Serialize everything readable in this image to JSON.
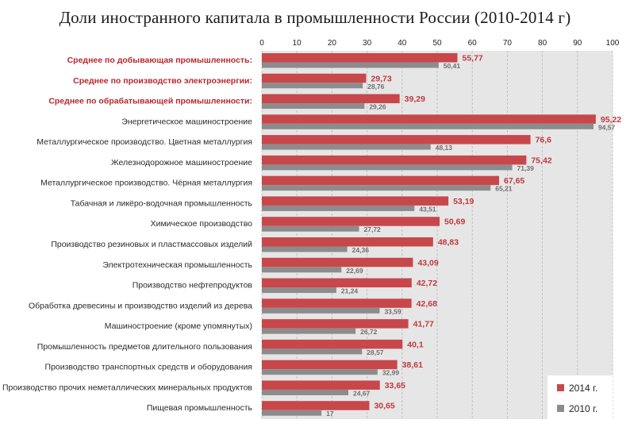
{
  "title": "Доли иностранного капитала в промышленности России (2010-2014 г)",
  "colors": {
    "series_2014": "#c8474b",
    "series_2010": "#8c8c8c",
    "plot_bg": "#e6e6e6",
    "highlight_label": "#b8282d"
  },
  "chart_data": {
    "type": "bar",
    "orientation": "horizontal",
    "title": "Доли иностранного капитала в промышленности России (2010-2014 г)",
    "xlim": [
      0,
      100
    ],
    "xticks": [
      0,
      10,
      20,
      30,
      40,
      50,
      60,
      70,
      80,
      90,
      100
    ],
    "x_axis_position": "top",
    "grid": "vertical dashed",
    "legend_position": "bottom-right",
    "categories": [
      "Среднее по добывающая промышленность:",
      "Среднее по производство электроэнергии:",
      "Среднее по обрабатывающей промышленности:",
      "Энергетическое машиностроение",
      "Металлургическое производство. Цветная металлургия",
      "Железнодорожное машиностроение",
      "Металлургическое производство. Чёрная металлургия",
      "Табачная и ликёро-водочная промышленность",
      "Химическое производство",
      "Производство резиновых и пластмассовых изделий",
      "Электротехническая промышленность",
      "Производство нефтепродуктов",
      "Обработка древесины и производство изделий из дерева",
      "Машиностроение (кроме упомянутых)",
      "Промышленность предметов длительного пользования",
      "Производство транспортных средств и оборудования",
      "Производство прочих неметаллических минеральных продуктов",
      "Пищевая промышленность"
    ],
    "highlighted_categories": [
      0,
      1,
      2
    ],
    "series": [
      {
        "name": "2014 г.",
        "values": [
          55.77,
          29.73,
          39.29,
          95.22,
          76.6,
          75.42,
          67.65,
          53.19,
          50.69,
          48.83,
          43.09,
          42.72,
          42.68,
          41.77,
          40.1,
          38.61,
          33.65,
          30.65
        ],
        "labels": [
          "55,77",
          "29,73",
          "39,29",
          "95,22",
          "76,6",
          "75,42",
          "67,65",
          "53,19",
          "50,69",
          "48,83",
          "43,09",
          "42,72",
          "42,68",
          "41,77",
          "40,1",
          "38,61",
          "33,65",
          "30,65"
        ]
      },
      {
        "name": "2010 г.",
        "values": [
          50.41,
          28.76,
          29.26,
          94.57,
          48.13,
          71.39,
          65.21,
          43.51,
          27.72,
          24.36,
          22.69,
          21.24,
          33.59,
          26.72,
          28.57,
          32.99,
          24.67,
          17
        ],
        "labels": [
          "50,41",
          "28,76",
          "29,26",
          "94,57",
          "48,13",
          "71,39",
          "65,21",
          "43,51",
          "27,72",
          "24,36",
          "22,69",
          "21,24",
          "33,59",
          "26,72",
          "28,57",
          "32,99",
          "24,67",
          "17"
        ]
      }
    ]
  }
}
